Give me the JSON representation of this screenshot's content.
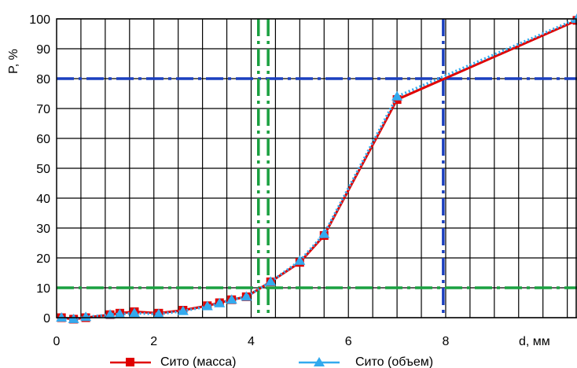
{
  "chart_data": {
    "type": "line",
    "xlabel": "d, мм",
    "ylabel": "P, %",
    "xlim": [
      0,
      10.7
    ],
    "ylim": [
      0,
      100
    ],
    "x_tick_labels": [
      "0",
      "2",
      "4",
      "6",
      "8"
    ],
    "x_ticks": [
      0,
      2,
      4,
      6,
      8
    ],
    "y_tick_labels": [
      "0",
      "10",
      "20",
      "30",
      "40",
      "50",
      "60",
      "70",
      "80",
      "90",
      "100"
    ],
    "y_ticks": [
      0,
      10,
      20,
      30,
      40,
      50,
      60,
      70,
      80,
      90,
      100
    ],
    "grid": true,
    "legend_position": "bottom",
    "series": [
      {
        "name": "Сито (масса)",
        "color": "#e00000",
        "marker": "square",
        "line_style": "solid",
        "x": [
          0.1,
          0.35,
          0.6,
          1.1,
          1.3,
          1.6,
          2.1,
          2.6,
          3.1,
          3.35,
          3.6,
          3.9,
          4.4,
          5.0,
          5.5,
          7.0,
          10.7
        ],
        "y": [
          0,
          -0.5,
          0,
          1,
          1.5,
          2,
          1.5,
          2.5,
          4,
          5,
          6,
          7,
          12,
          18.5,
          27.5,
          73,
          99.5
        ]
      },
      {
        "name": "Сито (объем)",
        "color": "#33aaee",
        "marker": "triangle",
        "line_style": "dotted",
        "x": [
          0.1,
          0.35,
          0.6,
          1.1,
          1.3,
          1.6,
          2.1,
          2.6,
          3.1,
          3.35,
          3.6,
          3.9,
          4.4,
          5.0,
          5.5,
          7.0,
          10.7
        ],
        "y": [
          0,
          -0.5,
          0.2,
          1,
          1.2,
          1.5,
          1.2,
          2.2,
          3.8,
          4.8,
          6,
          7,
          12,
          19,
          28,
          74,
          100
        ]
      }
    ],
    "reference_lines": [
      {
        "orientation": "horizontal",
        "value": 80,
        "color": "#1a3fbf",
        "style": "dashdot"
      },
      {
        "orientation": "horizontal",
        "value": 10,
        "color": "#1aa040",
        "style": "dashdot"
      },
      {
        "orientation": "vertical",
        "value": 7.95,
        "color": "#1a3fbf",
        "style": "dashdot"
      },
      {
        "orientation": "vertical",
        "value": 4.15,
        "color": "#1aa040",
        "style": "dashdot"
      },
      {
        "orientation": "vertical",
        "value": 4.35,
        "color": "#1aa040",
        "style": "dashdot"
      }
    ]
  }
}
